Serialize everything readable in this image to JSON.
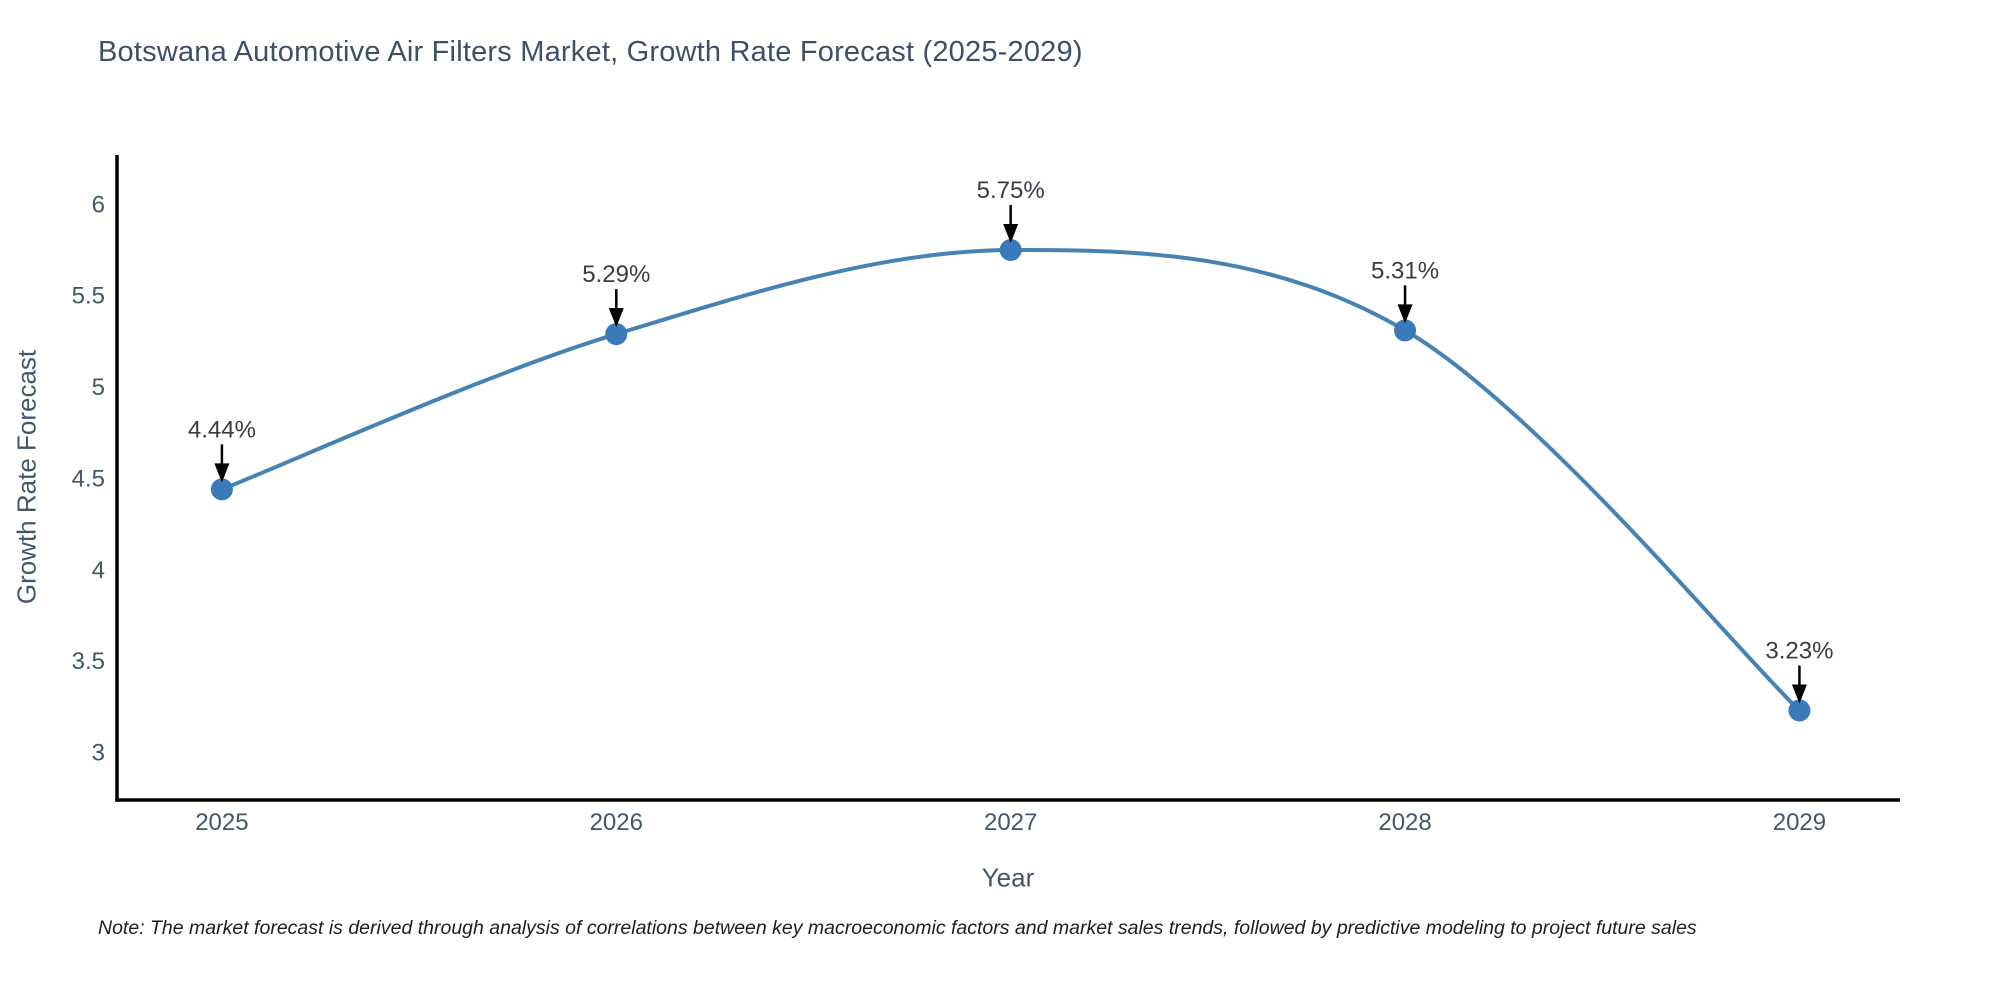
{
  "chart_data": {
    "type": "line",
    "title": "Botswana Automotive Air Filters Market, Growth Rate Forecast (2025-2029)",
    "xlabel": "Year",
    "ylabel": "Growth Rate Forecast",
    "x": [
      2025,
      2026,
      2027,
      2028,
      2029
    ],
    "series": [
      {
        "name": "Growth Rate Forecast",
        "values": [
          4.44,
          5.29,
          5.75,
          5.31,
          3.23
        ]
      }
    ],
    "point_labels": [
      "4.44%",
      "5.29%",
      "5.75%",
      "5.31%",
      "3.23%"
    ],
    "yticks": [
      3,
      3.5,
      4,
      4.5,
      5,
      5.5,
      6
    ],
    "ylim": [
      2.74,
      6.27
    ],
    "xlim": [
      2024.734,
      2029.255
    ],
    "grid": false,
    "legend": "none",
    "line_shape": "spline",
    "colors": {
      "line": "#4682b4",
      "marker": "#3b79b8",
      "axis_line": "#000000",
      "tick_text": "#42576b",
      "annotation_text": "#383d44",
      "arrow": "#000000"
    }
  },
  "note": "Note: The market forecast is derived through analysis of correlations between key macroeconomic factors and market sales trends, followed by predictive modeling to project future sales"
}
